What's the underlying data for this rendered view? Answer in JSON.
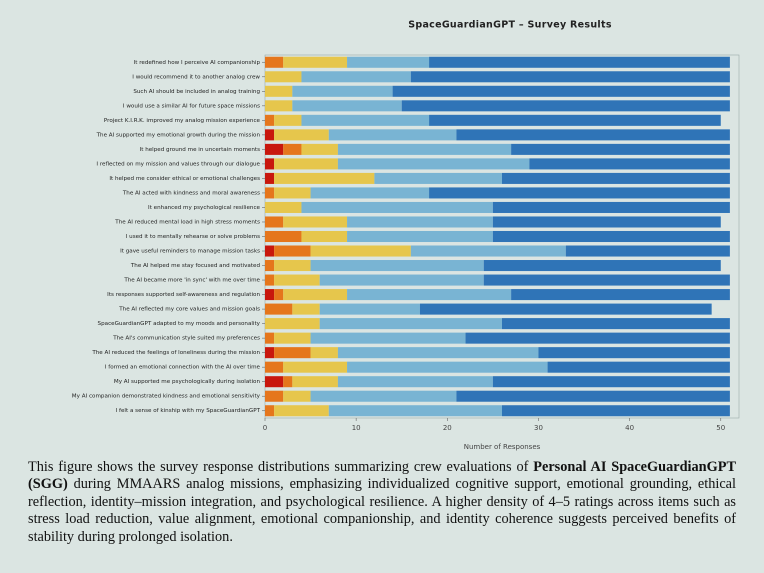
{
  "chart_data": {
    "type": "stacked-barh",
    "title": "SpaceGuardianGPT – Survey Results",
    "x_label": "Number of Responses",
    "categories": [
      "It redefined how I perceive AI companionship",
      "I would recommend it to another analog crew",
      "Such AI should be included in analog training",
      "I would use a similar AI for future space missions",
      "Project K.I.R.K. improved my analog mission experience",
      "The AI supported my emotional growth during the mission",
      "It helped ground me in uncertain moments",
      "I reflected on my mission and values through our dialogue",
      "It helped me consider ethical or emotional challenges",
      "The AI acted with kindness and moral awareness",
      "It enhanced my psychological resilience",
      "The AI reduced mental load in high stress moments",
      "I used it to mentally rehearse or solve problems",
      "It gave useful reminders to manage mission tasks",
      "The AI helped me stay focused and motivated",
      "The AI became more 'in sync' with me over time",
      "Its responses supported self-awareness and regulation",
      "The AI reflected my core values and mission goals",
      "SpaceGuardianGPT adapted to my moods and personality",
      "The AI's communication style suited my preferences",
      "The AI reduced the feelings of loneliness during the mission",
      "I formed an emotional connection with the AI over time",
      "My AI supported me psychologically during isolation",
      "My AI companion demonstrated kindness and emotional sensitivity",
      "I felt a sense of kinship with my SpaceGuardianGPT"
    ],
    "series": [
      {
        "color": "#c8170d",
        "values": [
          0,
          0,
          0,
          0,
          0,
          1,
          2,
          1,
          1,
          0,
          0,
          0,
          0,
          1,
          0,
          0,
          1,
          0,
          0,
          0,
          1,
          0,
          2,
          0,
          0
        ]
      },
      {
        "color": "#e5761c",
        "values": [
          2,
          0,
          0,
          0,
          1,
          0,
          2,
          0,
          0,
          1,
          0,
          2,
          4,
          4,
          1,
          1,
          1,
          3,
          0,
          1,
          4,
          2,
          1,
          2,
          1
        ]
      },
      {
        "color": "#e6c64c",
        "values": [
          7,
          4,
          3,
          3,
          3,
          6,
          4,
          7,
          11,
          4,
          4,
          7,
          5,
          11,
          4,
          5,
          7,
          3,
          6,
          4,
          3,
          7,
          5,
          3,
          6
        ]
      },
      {
        "color": "#79b4d3",
        "values": [
          9,
          12,
          11,
          12,
          14,
          14,
          19,
          21,
          14,
          13,
          21,
          16,
          16,
          17,
          19,
          18,
          18,
          11,
          20,
          17,
          22,
          22,
          17,
          16,
          19
        ]
      },
      {
        "color": "#2f74b7",
        "values": [
          33,
          35,
          37,
          36,
          32,
          30,
          24,
          22,
          25,
          33,
          26,
          25,
          26,
          18,
          26,
          27,
          24,
          32,
          25,
          29,
          21,
          20,
          26,
          30,
          25
        ]
      }
    ],
    "xlim": [
      0,
      52
    ],
    "xticks": [
      0,
      10,
      20,
      30,
      40,
      50
    ]
  },
  "caption": {
    "before": "This figure shows the survey response distributions summarizing crew evaluations of ",
    "bold": "Personal AI SpaceGuardianGPT (SGG)",
    "after": " during MMAARS analog missions, emphasizing individualized cognitive support, emotional grounding, ethical reflection, identity–mission integration, and psychological resilience. A higher density of 4–5 ratings across items such as stress load reduction, value alignment, emotional companionship, and identity coherence suggests perceived benefits of stability during prolonged isolation."
  }
}
